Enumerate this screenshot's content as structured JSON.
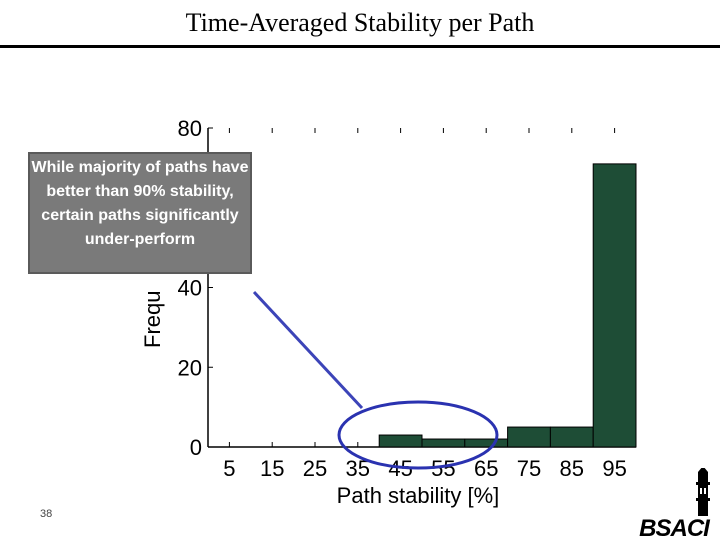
{
  "slide": {
    "title": "Time-Averaged Stability per Path",
    "callout": "While majority of paths have better than 90% stability, certain paths significantly under-perform",
    "page_number": "38",
    "logo_text": "BSACI"
  },
  "colors": {
    "bar": "#1e4d36",
    "callout_bg": "#7a7a7a",
    "ellipse": "#2a32b0",
    "arrow": "#3c44b8"
  },
  "chart_data": {
    "type": "bar",
    "categories": [
      "5",
      "15",
      "25",
      "35",
      "45",
      "55",
      "65",
      "75",
      "85",
      "95"
    ],
    "values": [
      0,
      0,
      0,
      0,
      3,
      2,
      2,
      5,
      5,
      71
    ],
    "xlabel": "Path stability [%]",
    "ylabel": "Frequ",
    "ylim": [
      0,
      80
    ],
    "yticks": [
      "0",
      "20",
      "40",
      "80"
    ],
    "yticks_values": [
      0,
      20,
      40,
      80
    ],
    "grid": false
  }
}
